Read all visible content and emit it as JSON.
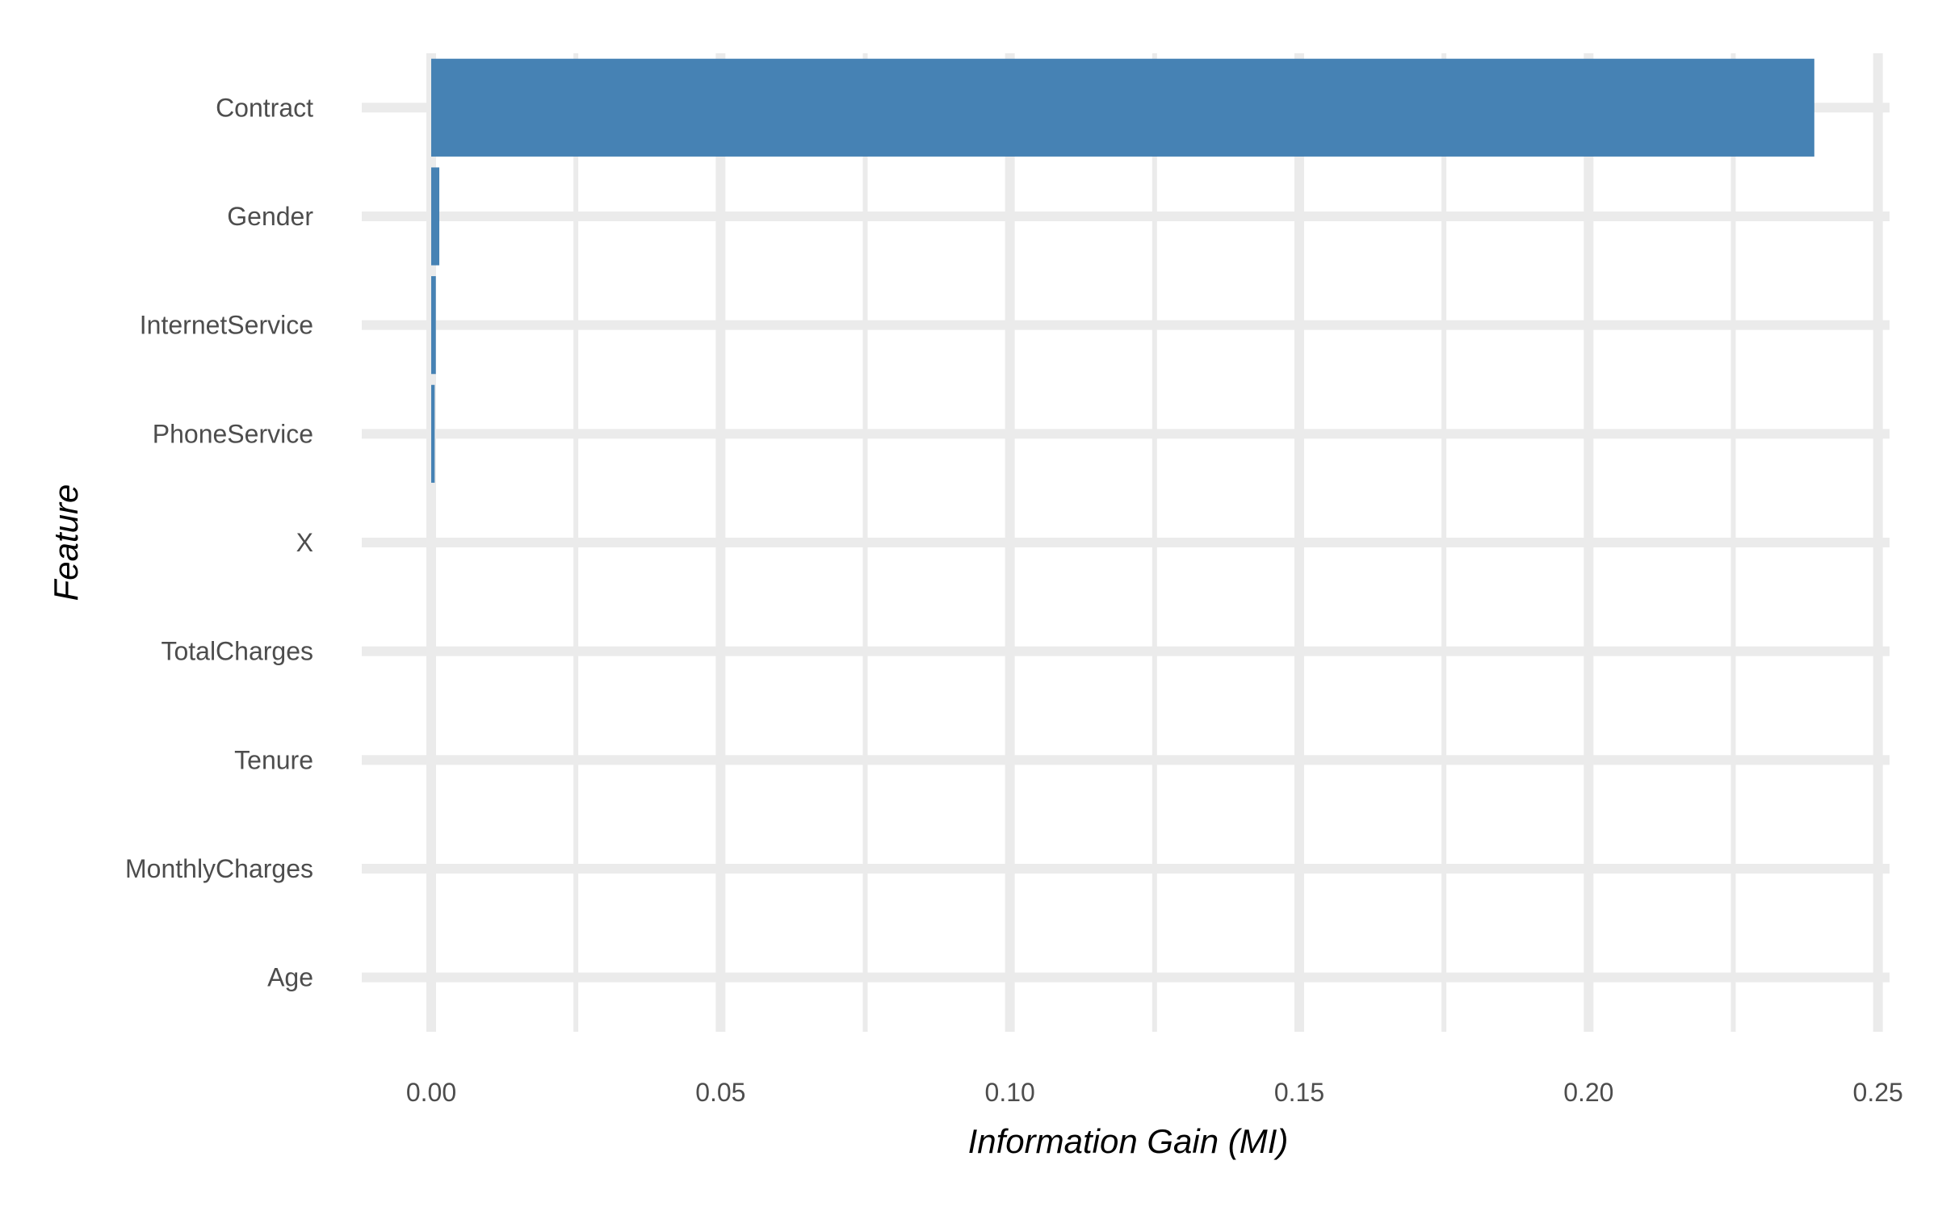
{
  "chart_data": {
    "type": "bar",
    "orientation": "horizontal",
    "xlabel": "Information Gain (MI)",
    "ylabel": "Feature",
    "xlim": [
      -0.012,
      0.252
    ],
    "x_ticks": [
      0.0,
      0.05,
      0.1,
      0.15,
      0.2,
      0.25
    ],
    "x_tick_labels": [
      "0.00",
      "0.05",
      "0.10",
      "0.15",
      "0.20",
      "0.25"
    ],
    "categories": [
      "Contract",
      "Gender",
      "InternetService",
      "PhoneService",
      "X",
      "TotalCharges",
      "Tenure",
      "MonthlyCharges",
      "Age"
    ],
    "values": [
      0.239,
      0.0014,
      0.0008,
      0.0006,
      0,
      0,
      0,
      0,
      0
    ],
    "bar_color": "#4682b4",
    "grid": true,
    "grid_color": "#ebebeb",
    "legend": "none"
  }
}
